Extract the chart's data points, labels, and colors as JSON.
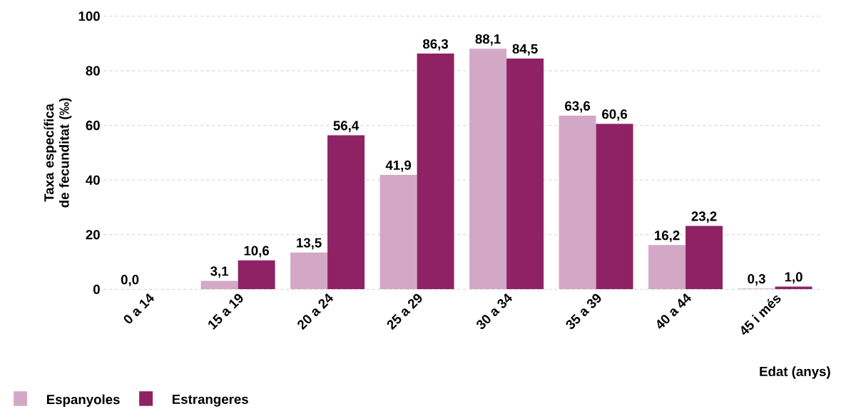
{
  "chart_data": {
    "type": "bar",
    "ylabel": "Taxa específica de fecunditat (‰)",
    "xlabel": "Edat (anys)",
    "categories": [
      "0 a 14",
      "15 a 19",
      "20 a 24",
      "25 a 29",
      "30 a 34",
      "35 a 39",
      "40 a 44",
      "45 i més"
    ],
    "series": [
      {
        "name": "Espanyoles",
        "color": "#d3a8c6",
        "values": [
          0.0,
          3.1,
          13.5,
          41.9,
          88.1,
          63.6,
          16.2,
          0.3
        ],
        "value_labels": [
          "0,0",
          "3,1",
          "13,5",
          "41,9",
          "88,1",
          "63,6",
          "16,2",
          "0,3"
        ]
      },
      {
        "name": "Estrangeres",
        "color": "#8f2264",
        "values": [
          null,
          10.6,
          56.4,
          86.3,
          84.5,
          60.6,
          23.2,
          1.0
        ],
        "value_labels": [
          null,
          "10,6",
          "56,4",
          "86,3",
          "84,5",
          "60,6",
          "23,2",
          "1,0"
        ]
      }
    ],
    "ylim": [
      0,
      100
    ],
    "yticks": [
      0,
      20,
      40,
      60,
      80,
      100
    ],
    "grid": "y",
    "legend": "bottom left"
  }
}
